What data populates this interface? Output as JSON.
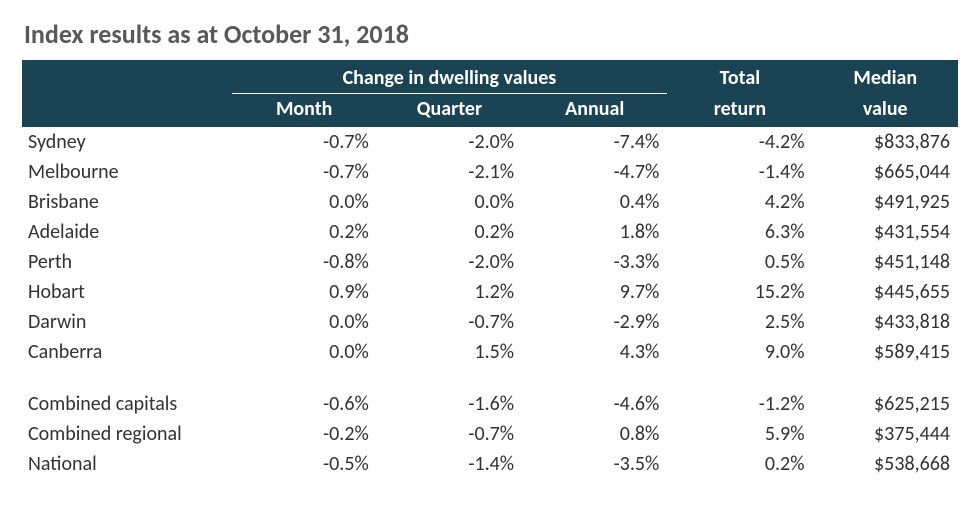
{
  "title": "Index results as at October 31, 2018",
  "colors": {
    "header_bg": "#1a4353",
    "header_fg": "#ffffff",
    "title_fg": "#595959",
    "body_fg": "#323232",
    "background": "#ffffff",
    "header_rule": "#ffffff"
  },
  "typography": {
    "title_fontsize_pt": 20,
    "body_fontsize_pt": 15,
    "font_family": "Calibri"
  },
  "header": {
    "group_change": "Change in dwelling values",
    "col_month": "Month",
    "col_quarter": "Quarter",
    "col_annual": "Annual",
    "col_total_return_top": "Total",
    "col_total_return_bot": "return",
    "col_median_top": "Median",
    "col_median_bot": "value"
  },
  "columns": [
    "label",
    "month",
    "quarter",
    "annual",
    "total_return",
    "median_value"
  ],
  "rows": [
    {
      "label": "Sydney",
      "month": "-0.7%",
      "quarter": "-2.0%",
      "annual": "-7.4%",
      "total_return": "-4.2%",
      "median_value": "$833,876"
    },
    {
      "label": "Melbourne",
      "month": "-0.7%",
      "quarter": "-2.1%",
      "annual": "-4.7%",
      "total_return": "-1.4%",
      "median_value": "$665,044"
    },
    {
      "label": "Brisbane",
      "month": "0.0%",
      "quarter": "0.0%",
      "annual": "0.4%",
      "total_return": "4.2%",
      "median_value": "$491,925"
    },
    {
      "label": "Adelaide",
      "month": "0.2%",
      "quarter": "0.2%",
      "annual": "1.8%",
      "total_return": "6.3%",
      "median_value": "$431,554"
    },
    {
      "label": "Perth",
      "month": "-0.8%",
      "quarter": "-2.0%",
      "annual": "-3.3%",
      "total_return": "0.5%",
      "median_value": "$451,148"
    },
    {
      "label": "Hobart",
      "month": "0.9%",
      "quarter": "1.2%",
      "annual": "9.7%",
      "total_return": "15.2%",
      "median_value": "$445,655"
    },
    {
      "label": "Darwin",
      "month": "0.0%",
      "quarter": "-0.7%",
      "annual": "-2.9%",
      "total_return": "2.5%",
      "median_value": "$433,818"
    },
    {
      "label": "Canberra",
      "month": "0.0%",
      "quarter": "1.5%",
      "annual": "4.3%",
      "total_return": "9.0%",
      "median_value": "$589,415"
    }
  ],
  "summary_rows": [
    {
      "label": "Combined capitals",
      "month": "-0.6%",
      "quarter": "-1.6%",
      "annual": "-4.6%",
      "total_return": "-1.2%",
      "median_value": "$625,215"
    },
    {
      "label": "Combined regional",
      "month": "-0.2%",
      "quarter": "-0.7%",
      "annual": "0.8%",
      "total_return": "5.9%",
      "median_value": "$375,444"
    },
    {
      "label": "National",
      "month": "-0.5%",
      "quarter": "-1.4%",
      "annual": "-3.5%",
      "total_return": "0.2%",
      "median_value": "$538,668"
    }
  ]
}
